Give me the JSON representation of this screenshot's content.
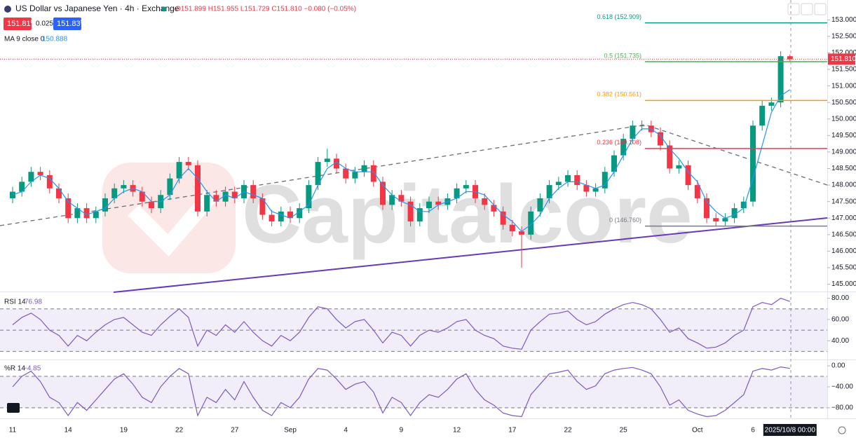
{
  "chart_data": [
    {
      "type": "candlestick",
      "title": "US Dollar vs Japanese Yen · 4h · Exchange",
      "ohlc_legend": "O151.899 H151.955 L151.729 C151.810 −0.080 (−0.05%)",
      "bid": "151.81",
      "bid_pip": "0",
      "spread": "0.025",
      "ask": "151.83",
      "ask_pip": "5",
      "price_badge": {
        "value": 151.81,
        "label": "151.810"
      },
      "watermark": "Capitalcore",
      "up_color": "#089981",
      "down_color": "#f23645",
      "categories": [
        "11",
        null,
        null,
        null,
        null,
        null,
        "14",
        null,
        null,
        null,
        null,
        null,
        "19",
        null,
        null,
        null,
        null,
        null,
        "22",
        null,
        null,
        null,
        null,
        null,
        "27",
        null,
        null,
        null,
        null,
        null,
        "Sep",
        null,
        null,
        null,
        null,
        null,
        "4",
        null,
        null,
        null,
        null,
        null,
        "9",
        null,
        null,
        null,
        null,
        null,
        "12",
        null,
        null,
        null,
        null,
        null,
        "17",
        null,
        null,
        null,
        null,
        null,
        "22",
        null,
        null,
        null,
        null,
        null,
        "25",
        null,
        null,
        null,
        null,
        null,
        null,
        null,
        "Oct",
        null,
        null,
        null,
        null,
        null,
        "6",
        null,
        null,
        null,
        "2025/10/8  00:00"
      ],
      "open": [
        147.6,
        147.8,
        148.1,
        148.4,
        148.3,
        147.9,
        147.6,
        147.0,
        147.3,
        147.0,
        147.2,
        147.6,
        147.9,
        148.0,
        147.8,
        147.5,
        147.3,
        147.7,
        148.2,
        148.7,
        148.6,
        147.2,
        147.7,
        147.5,
        147.8,
        147.6,
        148.0,
        147.6,
        147.1,
        146.9,
        147.2,
        147.0,
        147.3,
        148.0,
        148.7,
        148.8,
        148.5,
        148.2,
        148.4,
        148.6,
        148.1,
        147.4,
        147.7,
        147.5,
        146.9,
        147.3,
        147.5,
        147.4,
        147.6,
        147.9,
        148.0,
        147.6,
        147.4,
        147.2,
        146.8,
        146.6,
        146.5,
        147.2,
        147.6,
        148.0,
        148.1,
        148.3,
        148.0,
        147.8,
        147.9,
        148.4,
        148.9,
        149.4,
        149.8,
        149.8,
        149.6,
        149.2,
        148.5,
        148.6,
        148.0,
        147.6,
        147.0,
        146.9,
        147.0,
        147.3,
        147.5,
        149.8,
        150.4,
        150.5,
        151.899
      ],
      "high": [
        147.95,
        148.25,
        148.55,
        148.55,
        148.45,
        148.05,
        147.75,
        147.45,
        147.45,
        147.35,
        147.75,
        148.05,
        148.15,
        148.15,
        147.95,
        147.65,
        147.85,
        148.35,
        148.85,
        148.85,
        148.75,
        147.85,
        147.85,
        147.95,
        147.95,
        148.15,
        148.15,
        147.75,
        147.25,
        147.35,
        147.35,
        147.45,
        148.15,
        148.85,
        149.1,
        148.95,
        148.65,
        148.55,
        148.75,
        148.75,
        148.25,
        147.85,
        147.85,
        147.65,
        147.45,
        147.65,
        147.65,
        147.75,
        148.05,
        148.15,
        148.15,
        147.75,
        147.55,
        147.35,
        146.95,
        146.75,
        147.35,
        147.75,
        148.15,
        148.25,
        148.45,
        148.45,
        148.15,
        148.05,
        148.55,
        149.05,
        149.55,
        149.95,
        149.95,
        149.95,
        149.75,
        149.35,
        148.75,
        148.75,
        148.15,
        147.75,
        147.15,
        147.15,
        147.45,
        147.65,
        149.95,
        150.55,
        150.65,
        152.05,
        151.955
      ],
      "low": [
        147.45,
        147.65,
        147.95,
        148.15,
        147.75,
        147.45,
        146.85,
        146.85,
        146.85,
        146.85,
        147.05,
        147.45,
        147.75,
        147.65,
        147.35,
        147.15,
        147.15,
        147.55,
        148.05,
        148.45,
        147.05,
        147.05,
        147.35,
        147.35,
        147.45,
        147.45,
        147.45,
        146.95,
        146.75,
        146.75,
        146.85,
        146.85,
        147.15,
        147.85,
        148.55,
        148.35,
        148.05,
        148.05,
        148.25,
        147.95,
        147.25,
        147.25,
        147.35,
        146.75,
        146.75,
        147.15,
        147.25,
        147.25,
        147.45,
        147.75,
        147.45,
        147.25,
        147.05,
        146.65,
        146.45,
        145.5,
        146.35,
        147.05,
        147.45,
        147.85,
        147.95,
        147.85,
        147.65,
        147.65,
        147.75,
        148.25,
        148.75,
        149.25,
        149.65,
        149.45,
        149.05,
        148.35,
        148.35,
        147.85,
        147.45,
        146.85,
        146.75,
        146.75,
        146.85,
        147.15,
        147.35,
        149.65,
        150.25,
        150.35,
        151.729
      ],
      "close": [
        147.8,
        148.1,
        148.4,
        148.3,
        147.9,
        147.6,
        147.0,
        147.3,
        147.0,
        147.2,
        147.6,
        147.9,
        148.0,
        147.8,
        147.5,
        147.3,
        147.7,
        148.2,
        148.7,
        148.6,
        147.2,
        147.7,
        147.5,
        147.8,
        147.6,
        148.0,
        147.6,
        147.1,
        146.9,
        147.2,
        147.0,
        147.3,
        148.0,
        148.7,
        148.8,
        148.5,
        148.2,
        148.4,
        148.6,
        148.1,
        147.4,
        147.7,
        147.5,
        146.9,
        147.3,
        147.5,
        147.4,
        147.6,
        147.9,
        148.0,
        147.6,
        147.4,
        147.2,
        146.8,
        146.6,
        146.5,
        147.2,
        147.6,
        148.0,
        148.1,
        148.3,
        148.0,
        147.8,
        147.9,
        148.4,
        148.9,
        149.4,
        149.8,
        149.8,
        149.6,
        149.2,
        148.5,
        148.6,
        148.0,
        147.6,
        147.0,
        146.9,
        147.0,
        147.3,
        147.5,
        149.8,
        150.4,
        150.5,
        151.9,
        151.81
      ],
      "series": [
        {
          "name": "MA 9 close 0",
          "color": "#2196f3",
          "values": [
            147.7,
            147.8,
            148.1,
            148.3,
            148.2,
            147.9,
            147.5,
            147.3,
            147.1,
            147.2,
            147.3,
            147.6,
            147.8,
            147.9,
            147.8,
            147.5,
            147.5,
            147.7,
            148.2,
            148.5,
            148.2,
            147.8,
            147.5,
            147.7,
            147.6,
            147.8,
            147.7,
            147.6,
            147.2,
            147.1,
            147.0,
            147.2,
            147.4,
            148.0,
            148.5,
            148.7,
            148.5,
            148.4,
            148.4,
            148.4,
            148.0,
            147.7,
            147.5,
            147.4,
            147.2,
            147.2,
            147.4,
            147.5,
            147.6,
            147.8,
            147.8,
            147.7,
            147.4,
            147.1,
            146.9,
            146.6,
            146.8,
            147.1,
            147.6,
            147.9,
            148.1,
            148.1,
            148.0,
            147.9,
            148.0,
            148.4,
            148.9,
            149.4,
            149.7,
            149.7,
            149.5,
            149.1,
            148.8,
            148.4,
            148.1,
            147.5,
            147.2,
            147.0,
            147.1,
            147.3,
            148.2,
            149.2,
            150.2,
            150.7,
            150.888
          ]
        }
      ],
      "fib_levels": [
        {
          "value": 152.909,
          "label": "0.618 (152.909)",
          "color": "#089981"
        },
        {
          "value": 151.735,
          "label": "0.5 (151.735)",
          "color": "#4caf50"
        },
        {
          "value": 150.561,
          "label": "0.382 (150.561)",
          "color": "#ff9800"
        },
        {
          "value": 149.108,
          "label": "0.236 (149.108)",
          "color": "#f23645"
        },
        {
          "value": 146.76,
          "label": "0 (146.760)",
          "color": "#787b86"
        }
      ],
      "ylim": [
        144.8,
        153.6
      ],
      "yticks": [
        {
          "value": 145,
          "label": "145.000"
        },
        {
          "value": 145.5,
          "label": "145.500"
        },
        {
          "value": 146,
          "label": "146.000"
        },
        {
          "value": 146.5,
          "label": "146.500"
        },
        {
          "value": 147,
          "label": "147.000"
        },
        {
          "value": 147.5,
          "label": "147.500"
        },
        {
          "value": 148,
          "label": "148.000"
        },
        {
          "value": 148.5,
          "label": "148.500"
        },
        {
          "value": 149,
          "label": "149.000"
        },
        {
          "value": 149.5,
          "label": "149.500"
        },
        {
          "value": 150,
          "label": "150.000"
        },
        {
          "value": 150.5,
          "label": "150.500"
        },
        {
          "value": 151,
          "label": "151.000"
        },
        {
          "value": 151.5,
          "label": "151.500"
        },
        {
          "value": 152,
          "label": "152.000"
        },
        {
          "value": 152.5,
          "label": "152.500"
        },
        {
          "value": 153,
          "label": "153.000"
        }
      ]
    },
    {
      "type": "line",
      "series": [
        {
          "name": "RSI 14",
          "color": "#7e57c2",
          "values": [
            55,
            62,
            66,
            60,
            50,
            45,
            35,
            45,
            40,
            48,
            55,
            60,
            62,
            55,
            48,
            45,
            55,
            63,
            70,
            62,
            35,
            50,
            45,
            55,
            48,
            58,
            48,
            40,
            35,
            45,
            40,
            48,
            62,
            72,
            70,
            60,
            52,
            58,
            60,
            50,
            38,
            48,
            45,
            35,
            45,
            50,
            48,
            52,
            58,
            60,
            50,
            45,
            42,
            35,
            33,
            32,
            50,
            58,
            65,
            66,
            68,
            60,
            55,
            58,
            65,
            70,
            74,
            76,
            74,
            70,
            60,
            48,
            52,
            42,
            38,
            33,
            34,
            38,
            45,
            50,
            72,
            76,
            74,
            80,
            76.98
          ]
        }
      ],
      "levels": [
        70,
        50,
        30
      ],
      "ylim": [
        23,
        85
      ],
      "yticks": [
        {
          "value": 40,
          "label": "40.00"
        },
        {
          "value": 60,
          "label": "60.00"
        },
        {
          "value": 80,
          "label": "80.00"
        }
      ]
    },
    {
      "type": "line",
      "series": [
        {
          "name": "%R 14",
          "color": "#7e57c2",
          "last_label": "−4.85",
          "values": [
            -40,
            -20,
            -10,
            -30,
            -60,
            -70,
            -95,
            -70,
            -85,
            -65,
            -45,
            -25,
            -15,
            -35,
            -60,
            -70,
            -40,
            -20,
            -5,
            -15,
            -95,
            -60,
            -70,
            -45,
            -65,
            -30,
            -60,
            -85,
            -95,
            -70,
            -80,
            -60,
            -25,
            -5,
            -8,
            -25,
            -45,
            -35,
            -30,
            -50,
            -90,
            -60,
            -70,
            -95,
            -70,
            -55,
            -60,
            -45,
            -25,
            -15,
            -45,
            -65,
            -75,
            -90,
            -95,
            -97,
            -55,
            -35,
            -15,
            -12,
            -8,
            -30,
            -45,
            -38,
            -15,
            -8,
            -5,
            -3,
            -8,
            -15,
            -40,
            -75,
            -65,
            -85,
            -92,
            -97,
            -95,
            -85,
            -70,
            -55,
            -10,
            -5,
            -8,
            -2,
            -4.85
          ]
        }
      ],
      "levels": [
        -20,
        -80
      ],
      "ylim": [
        -99,
        9.5
      ],
      "yticks": [
        {
          "value": -80,
          "label": "−80.00"
        },
        {
          "value": -40,
          "label": "−40.00"
        },
        {
          "value": 0,
          "label": "0.00"
        }
      ]
    }
  ]
}
